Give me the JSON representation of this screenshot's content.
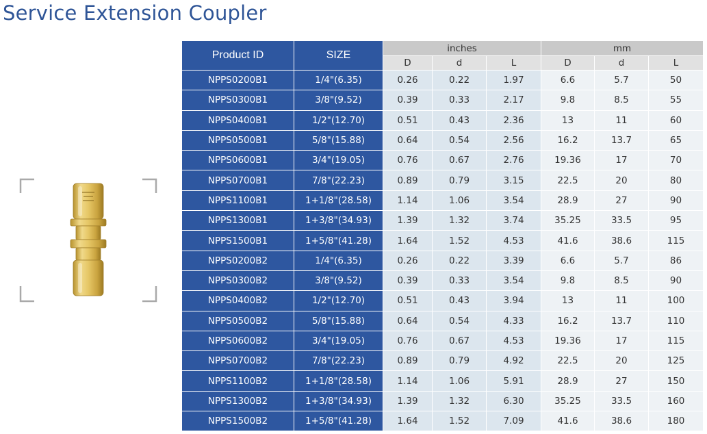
{
  "title": "Service Extension Coupler",
  "headers": {
    "product_id": "Product ID",
    "size": "SIZE",
    "inches_group": "inches",
    "mm_group": "mm",
    "D": "D",
    "d": "d",
    "L": "L"
  },
  "rows": [
    {
      "id": "NPPS0200B1",
      "size": "1/4\"(6.35)",
      "in_D": "0.26",
      "in_d": "0.22",
      "in_L": "1.97",
      "mm_D": "6.6",
      "mm_d": "5.7",
      "mm_L": "50"
    },
    {
      "id": "NPPS0300B1",
      "size": "3/8\"(9.52)",
      "in_D": "0.39",
      "in_d": "0.33",
      "in_L": "2.17",
      "mm_D": "9.8",
      "mm_d": "8.5",
      "mm_L": "55"
    },
    {
      "id": "NPPS0400B1",
      "size": "1/2\"(12.70)",
      "in_D": "0.51",
      "in_d": "0.43",
      "in_L": "2.36",
      "mm_D": "13",
      "mm_d": "11",
      "mm_L": "60"
    },
    {
      "id": "NPPS0500B1",
      "size": "5/8\"(15.88)",
      "in_D": "0.64",
      "in_d": "0.54",
      "in_L": "2.56",
      "mm_D": "16.2",
      "mm_d": "13.7",
      "mm_L": "65"
    },
    {
      "id": "NPPS0600B1",
      "size": "3/4\"(19.05)",
      "in_D": "0.76",
      "in_d": "0.67",
      "in_L": "2.76",
      "mm_D": "19.36",
      "mm_d": "17",
      "mm_L": "70"
    },
    {
      "id": "NPPS0700B1",
      "size": "7/8\"(22.23)",
      "in_D": "0.89",
      "in_d": "0.79",
      "in_L": "3.15",
      "mm_D": "22.5",
      "mm_d": "20",
      "mm_L": "80"
    },
    {
      "id": "NPPS1100B1",
      "size": "1+1/8\"(28.58)",
      "in_D": "1.14",
      "in_d": "1.06",
      "in_L": "3.54",
      "mm_D": "28.9",
      "mm_d": "27",
      "mm_L": "90"
    },
    {
      "id": "NPPS1300B1",
      "size": "1+3/8\"(34.93)",
      "in_D": "1.39",
      "in_d": "1.32",
      "in_L": "3.74",
      "mm_D": "35.25",
      "mm_d": "33.5",
      "mm_L": "95"
    },
    {
      "id": "NPPS1500B1",
      "size": "1+5/8\"(41.28)",
      "in_D": "1.64",
      "in_d": "1.52",
      "in_L": "4.53",
      "mm_D": "41.6",
      "mm_d": "38.6",
      "mm_L": "115"
    },
    {
      "id": "NPPS0200B2",
      "size": "1/4\"(6.35)",
      "in_D": "0.26",
      "in_d": "0.22",
      "in_L": "3.39",
      "mm_D": "6.6",
      "mm_d": "5.7",
      "mm_L": "86"
    },
    {
      "id": "NPPS0300B2",
      "size": "3/8\"(9.52)",
      "in_D": "0.39",
      "in_d": "0.33",
      "in_L": "3.54",
      "mm_D": "9.8",
      "mm_d": "8.5",
      "mm_L": "90"
    },
    {
      "id": "NPPS0400B2",
      "size": "1/2\"(12.70)",
      "in_D": "0.51",
      "in_d": "0.43",
      "in_L": "3.94",
      "mm_D": "13",
      "mm_d": "11",
      "mm_L": "100"
    },
    {
      "id": "NPPS0500B2",
      "size": "5/8\"(15.88)",
      "in_D": "0.64",
      "in_d": "0.54",
      "in_L": "4.33",
      "mm_D": "16.2",
      "mm_d": "13.7",
      "mm_L": "110"
    },
    {
      "id": "NPPS0600B2",
      "size": "3/4\"(19.05)",
      "in_D": "0.76",
      "in_d": "0.67",
      "in_L": "4.53",
      "mm_D": "19.36",
      "mm_d": "17",
      "mm_L": "115"
    },
    {
      "id": "NPPS0700B2",
      "size": "7/8\"(22.23)",
      "in_D": "0.89",
      "in_d": "0.79",
      "in_L": "4.92",
      "mm_D": "22.5",
      "mm_d": "20",
      "mm_L": "125"
    },
    {
      "id": "NPPS1100B2",
      "size": "1+1/8\"(28.58)",
      "in_D": "1.14",
      "in_d": "1.06",
      "in_L": "5.91",
      "mm_D": "28.9",
      "mm_d": "27",
      "mm_L": "150"
    },
    {
      "id": "NPPS1300B2",
      "size": "1+3/8\"(34.93)",
      "in_D": "1.39",
      "in_d": "1.32",
      "in_L": "6.30",
      "mm_D": "35.25",
      "mm_d": "33.5",
      "mm_L": "160"
    },
    {
      "id": "NPPS1500B2",
      "size": "1+5/8\"(41.28)",
      "in_D": "1.64",
      "in_d": "1.52",
      "in_L": "7.09",
      "mm_D": "41.6",
      "mm_d": "38.6",
      "mm_L": "180"
    }
  ],
  "colors": {
    "title": "#2f5597",
    "header_blue": "#2e57a0",
    "inch_cells": "#dce6ee",
    "mm_cells": "#eef2f5",
    "brass": "#d8b85a"
  },
  "image": {
    "icon": "brass-coupler-image"
  }
}
